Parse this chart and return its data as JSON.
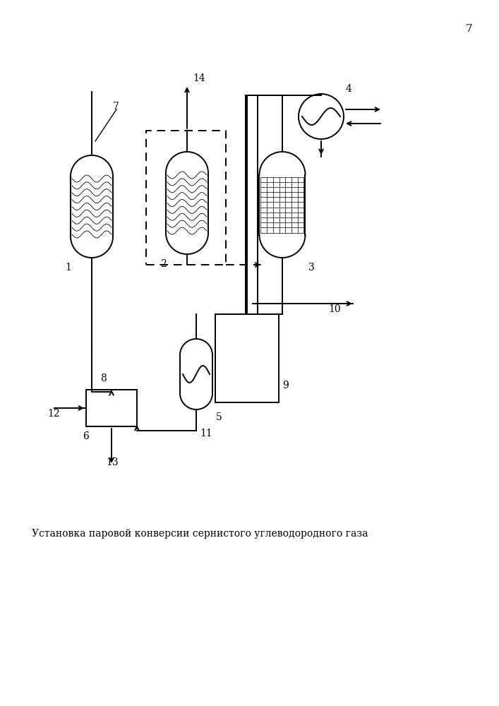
{
  "page_number": "7",
  "title": "Установка паровой конверсии сернистого углеводородного газа",
  "bg_color": "#ffffff",
  "line_color": "#000000"
}
